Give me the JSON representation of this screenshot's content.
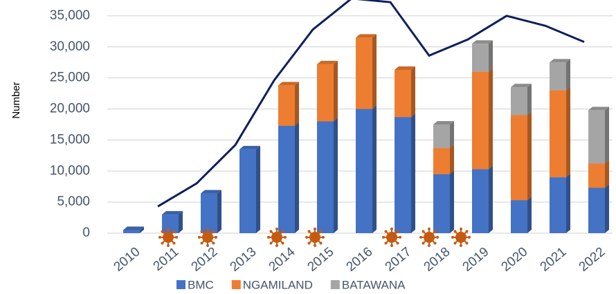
{
  "chart_data": {
    "type": "bar",
    "stacked": true,
    "y_label": "Number",
    "categories": [
      "2010",
      "2011",
      "2012",
      "2013",
      "2014",
      "2015",
      "2016",
      "2017",
      "2018",
      "2019",
      "2020",
      "2021",
      "2022"
    ],
    "series": [
      {
        "name": "BMC",
        "color": "#4472c4",
        "values": [
          500,
          3000,
          6400,
          13500,
          17300,
          18000,
          20000,
          18700,
          9500,
          10300,
          5300,
          9000,
          7300
        ]
      },
      {
        "name": "NGAMILAND",
        "color": "#ed7d31",
        "values": [
          0,
          0,
          0,
          0,
          6500,
          9200,
          11500,
          7600,
          4200,
          15700,
          13700,
          14000,
          3900
        ]
      },
      {
        "name": "BATAWANA",
        "color": "#a5a5a5",
        "values": [
          0,
          0,
          0,
          0,
          0,
          0,
          0,
          0,
          3800,
          4500,
          4500,
          4500,
          8600
        ]
      },
      {
        "type": "line",
        "color": "#0d1f5c",
        "values": [
          null,
          4300,
          8000,
          14200,
          24600,
          32800,
          37800,
          37200,
          28600,
          31200,
          35000,
          33400,
          30800
        ]
      }
    ],
    "ylim": [
      0,
      38000
    ],
    "yticks": [
      0,
      {
        "value": 5000,
        "label": "5,000"
      },
      {
        "value": 10000,
        "label": "10,000"
      },
      {
        "value": 15000,
        "label": "15,000"
      },
      {
        "value": 20000,
        "label": "20,000"
      },
      {
        "value": 25000,
        "label": "25,000"
      },
      {
        "value": 30000,
        "label": "30,000"
      },
      {
        "value": 35000,
        "label": "35,000"
      }
    ],
    "grid": true
  }
}
